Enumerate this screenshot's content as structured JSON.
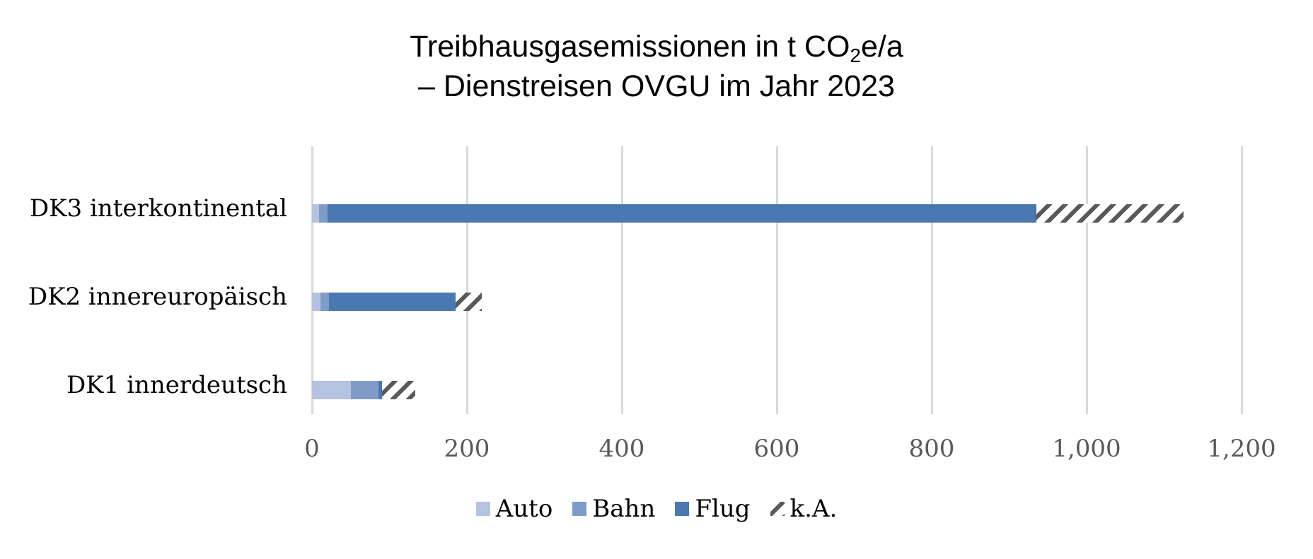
{
  "chart_data": {
    "type": "bar",
    "orientation": "horizontal",
    "stacked": true,
    "title_line1_prefix": "Treibhausgasemissionen in t CO",
    "title_line1_sub": "2",
    "title_line1_suffix": "e/a",
    "title_line2": "– Dienstreisen OVGU im Jahr 2023",
    "title": "Treibhausgasemissionen in t CO2e/a – Dienstreisen OVGU im Jahr 2023",
    "xlabel": "",
    "ylabel": "",
    "xlim": [
      0,
      1200
    ],
    "x_ticks": [
      0,
      200,
      400,
      600,
      800,
      1000,
      1200
    ],
    "x_tick_labels": [
      "0",
      "200",
      "400",
      "600",
      "800",
      "1,000",
      "1,200"
    ],
    "grid": true,
    "legend_position": "bottom",
    "categories": [
      "DK3 interkontinental",
      "DK2 innereuropäisch",
      "DK1 innerdeutsch"
    ],
    "series": [
      {
        "name": "Auto",
        "color": "#b4c3df",
        "values": [
          9,
          11,
          50
        ]
      },
      {
        "name": "Bahn",
        "color": "#7f9bc8",
        "values": [
          11,
          11,
          36
        ]
      },
      {
        "name": "Flug",
        "color": "#4a78b0",
        "values": [
          915,
          163,
          4
        ]
      },
      {
        "name": "k.A.",
        "color": "#595959",
        "pattern": "diagonal-hatch",
        "values": [
          190,
          34,
          43
        ]
      }
    ],
    "totals": [
      1125,
      219,
      133
    ]
  }
}
